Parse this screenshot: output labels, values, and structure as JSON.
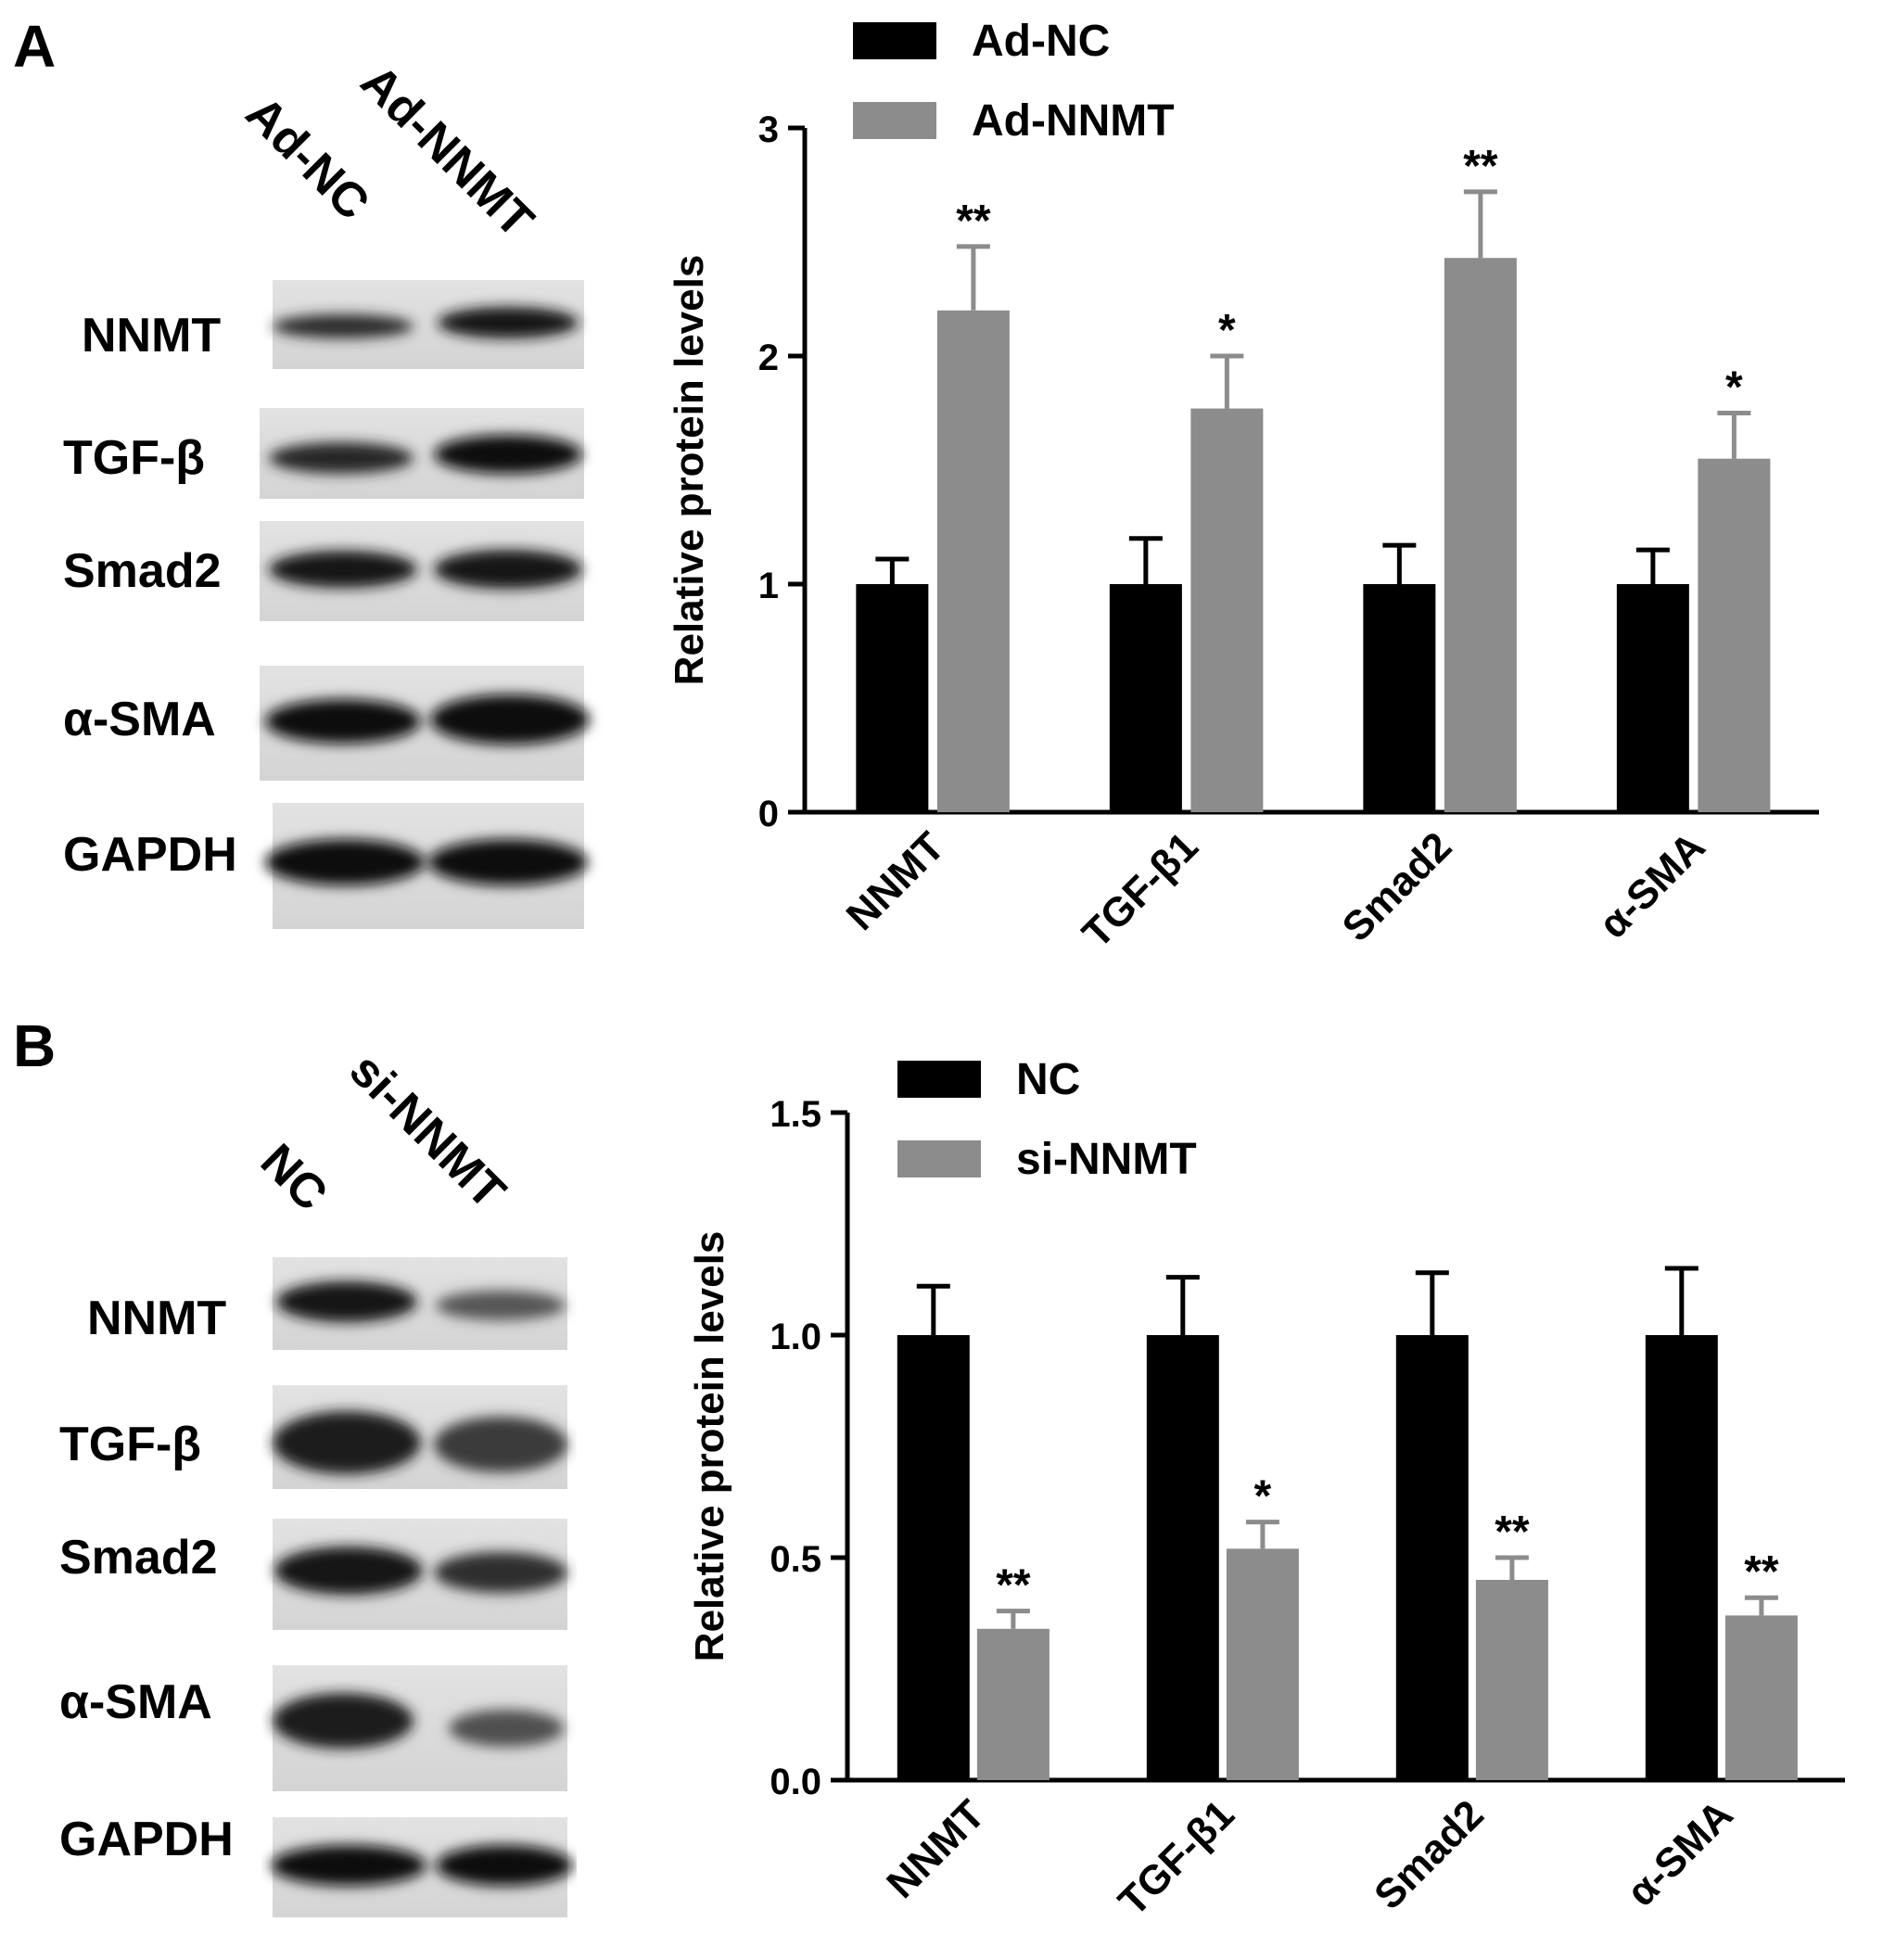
{
  "panels": [
    {
      "letter": "A",
      "blot": {
        "lanes": [
          "Ad-NC",
          "Ad-NNMT"
        ],
        "rows": [
          "NNMT",
          "TGF-β",
          "Smad2",
          "α-SMA",
          "GAPDH"
        ]
      }
    },
    {
      "letter": "B",
      "blot": {
        "lanes": [
          "NC",
          "si-NNMT"
        ],
        "rows": [
          "NNMT",
          "TGF-β",
          "Smad2",
          "α-SMA",
          "GAPDH"
        ]
      }
    }
  ],
  "chart_data": [
    {
      "type": "bar",
      "ylabel": "Relative protein levels",
      "categories": [
        "NNMT",
        "TGF-β1",
        "Smad2",
        "α-SMA"
      ],
      "ylim": [
        0,
        3
      ],
      "yticks": [
        "0",
        "1",
        "2",
        "3"
      ],
      "legend_position": "top-left",
      "series": [
        {
          "name": "Ad-NC",
          "color": "#000000",
          "values": [
            1.0,
            1.0,
            1.0,
            1.0
          ],
          "errors": [
            0.11,
            0.2,
            0.17,
            0.15
          ],
          "stars": [
            "",
            "",
            "",
            ""
          ]
        },
        {
          "name": "Ad-NNMT",
          "color": "#8c8c8c",
          "values": [
            2.2,
            1.77,
            2.43,
            1.55
          ],
          "errors": [
            0.28,
            0.23,
            0.29,
            0.2
          ],
          "stars": [
            "**",
            "*",
            "**",
            "*"
          ]
        }
      ]
    },
    {
      "type": "bar",
      "ylabel": "Relative protein levels",
      "categories": [
        "NNMT",
        "TGF-β1",
        "Smad2",
        "α-SMA"
      ],
      "ylim": [
        0,
        1.5
      ],
      "yticks": [
        "0.0",
        "0.5",
        "1.0",
        "1.5"
      ],
      "legend_position": "top-left",
      "series": [
        {
          "name": "NC",
          "color": "#000000",
          "values": [
            1.0,
            1.0,
            1.0,
            1.0
          ],
          "errors": [
            0.11,
            0.13,
            0.14,
            0.15
          ],
          "stars": [
            "",
            "",
            "",
            ""
          ]
        },
        {
          "name": "si-NNMT",
          "color": "#8c8c8c",
          "values": [
            0.34,
            0.52,
            0.45,
            0.37
          ],
          "errors": [
            0.04,
            0.06,
            0.05,
            0.04
          ],
          "stars": [
            "**",
            "*",
            "**",
            "**"
          ]
        }
      ]
    }
  ]
}
